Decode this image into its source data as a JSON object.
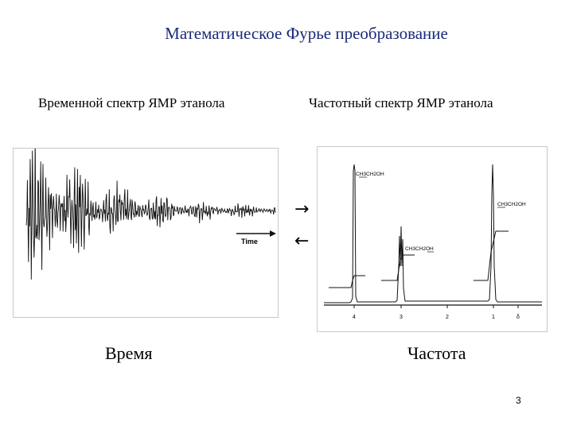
{
  "title": "Математическое Фурье преобразование",
  "left_panel": {
    "heading": "Временной спектр ЯМР этанола",
    "axis_arrow_label": "Time",
    "caption": "Время"
  },
  "right_panel": {
    "heading": "Частотный спектр ЯМР этанола",
    "peak_labels": [
      "CH3CH2OH",
      "CH3CH2OH",
      "CH3CH2OH"
    ],
    "ticks": [
      "4",
      "3",
      "2",
      "1",
      "δ"
    ],
    "caption": "Частота"
  },
  "arrows": {
    "forward": "→",
    "backward": "←"
  },
  "page_number": "3"
}
